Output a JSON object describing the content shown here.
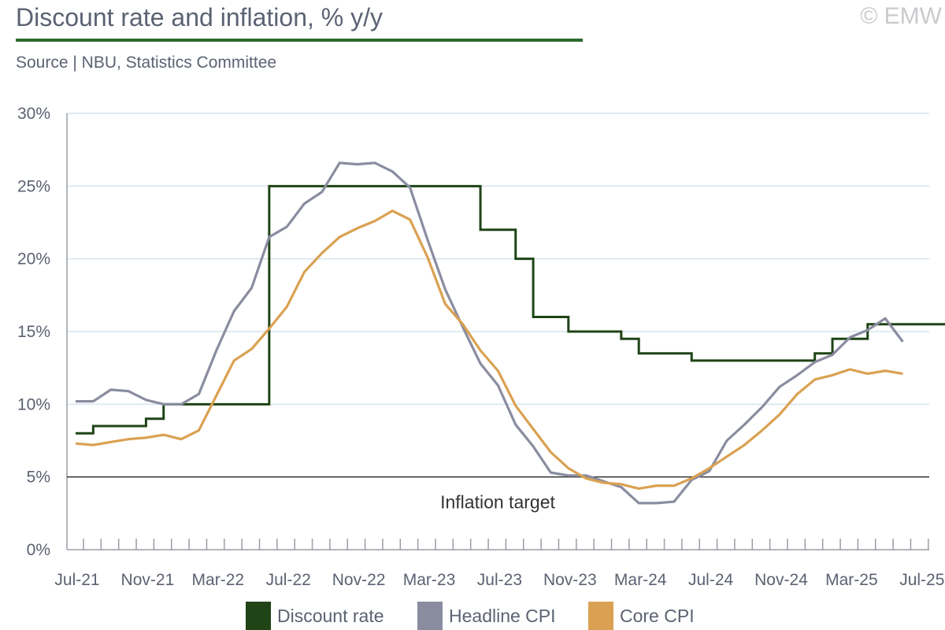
{
  "title": "Discount rate and inflation, % y/y",
  "subtitle": "Source | NBU, Statistics Committee",
  "copyright": "© EMW",
  "annotation": "Inflation target",
  "colors": {
    "discount_rate": "#1f4416",
    "headline_cpi": "#8a8da0",
    "core_cpi": "#daa152",
    "target_line": "#333333",
    "grid": "#d6e3ec",
    "axis": "#9a9da6",
    "title_rule": "#2d6a2f"
  },
  "legend": [
    {
      "label": "Discount rate",
      "color": "#1f4416"
    },
    {
      "label": "Headline CPI",
      "color": "#8a8da0"
    },
    {
      "label": "Core CPI",
      "color": "#daa152"
    }
  ],
  "chart_data": {
    "type": "line",
    "x_start": "Jul-21",
    "x_tick_labels": [
      "Jul-21",
      "Nov-21",
      "Mar-22",
      "Jul-22",
      "Nov-22",
      "Mar-23",
      "Jul-23",
      "Nov-23",
      "Mar-24",
      "Jul-24",
      "Nov-24",
      "Mar-25",
      "Jul-25"
    ],
    "y_tick_labels": [
      "0%",
      "5%",
      "10%",
      "15%",
      "20%",
      "25%",
      "30%"
    ],
    "ylim": [
      0,
      30
    ],
    "reference_line": {
      "value": 5,
      "label": "Inflation target"
    },
    "grid": true,
    "legend_position": "bottom",
    "series": [
      {
        "name": "Discount rate",
        "style": "step",
        "values": [
          8,
          8.5,
          8.5,
          8.5,
          9,
          10,
          10,
          10,
          10,
          10,
          10,
          25,
          25,
          25,
          25,
          25,
          25,
          25,
          25,
          25,
          25,
          25,
          25,
          22,
          22,
          20,
          16,
          16,
          15,
          15,
          15,
          14.5,
          13.5,
          13.5,
          13.5,
          13,
          13,
          13,
          13,
          13,
          13,
          13,
          13.5,
          14.5,
          14.5,
          15.5,
          15.5,
          15.5,
          15.5,
          15.5
        ]
      },
      {
        "name": "Headline CPI",
        "values": [
          10.2,
          10.2,
          11.0,
          10.9,
          10.3,
          10.0,
          10.0,
          10.7,
          13.7,
          16.4,
          18.0,
          21.5,
          22.2,
          23.8,
          24.6,
          26.6,
          26.5,
          26.6,
          26.0,
          24.9,
          21.3,
          17.9,
          15.3,
          12.8,
          11.3,
          8.6,
          7.1,
          5.3,
          5.1,
          5.1,
          4.7,
          4.3,
          3.2,
          3.2,
          3.3,
          4.8,
          5.4,
          7.5,
          8.6,
          9.8,
          11.2,
          12.0,
          12.9,
          13.4,
          14.6,
          15.1,
          15.9,
          14.3
        ]
      },
      {
        "name": "Core CPI",
        "values": [
          7.3,
          7.2,
          7.4,
          7.6,
          7.7,
          7.9,
          7.6,
          8.2,
          10.6,
          13.0,
          13.8,
          15.2,
          16.7,
          19.1,
          20.4,
          21.5,
          22.1,
          22.6,
          23.3,
          22.7,
          20.1,
          16.9,
          15.5,
          13.7,
          12.3,
          9.9,
          8.3,
          6.7,
          5.6,
          4.9,
          4.6,
          4.5,
          4.2,
          4.4,
          4.4,
          4.9,
          5.6,
          6.4,
          7.2,
          8.2,
          9.3,
          10.7,
          11.7,
          12.0,
          12.4,
          12.1,
          12.3,
          12.1
        ]
      }
    ]
  }
}
